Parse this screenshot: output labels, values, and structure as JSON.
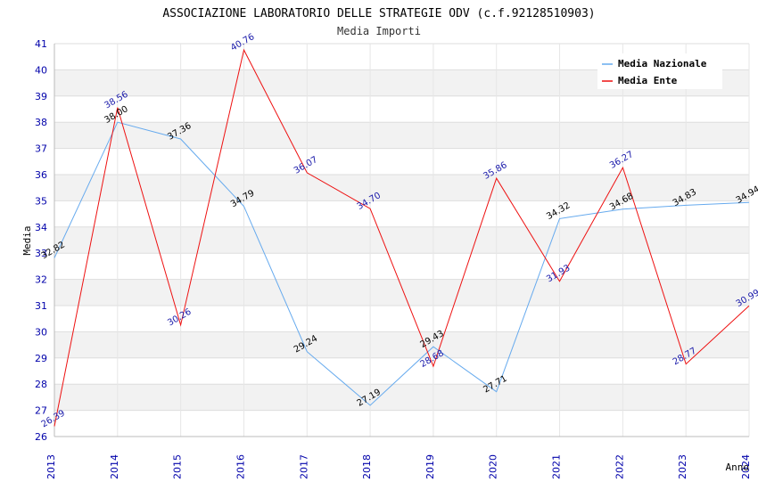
{
  "chart_data": {
    "type": "line",
    "title": "ASSOCIAZIONE LABORATORIO DELLE STRATEGIE ODV (c.f.92128510903)",
    "subtitle": "Media Importi",
    "xlabel": "Anno",
    "ylabel": "Media",
    "ylim": [
      26,
      41
    ],
    "yticks": [
      "26",
      "27",
      "28",
      "29",
      "30",
      "31",
      "32",
      "33",
      "34",
      "35",
      "36",
      "37",
      "38",
      "39",
      "40",
      "41"
    ],
    "x": [
      "2013",
      "2014",
      "2015",
      "2016",
      "2017",
      "2018",
      "2019",
      "2020",
      "2021",
      "2022",
      "2023",
      "2024"
    ],
    "grid": true,
    "legend_position": "top-right",
    "series": [
      {
        "name": "Media Nazionale",
        "color": "#66aaee",
        "label_color": "#000000",
        "values": [
          32.82,
          38.0,
          37.36,
          34.79,
          29.24,
          27.19,
          29.43,
          27.71,
          34.32,
          34.68,
          34.83,
          34.94
        ],
        "labels": [
          "32.82",
          "38.00",
          "37.36",
          "34.79",
          "29.24",
          "27.19",
          "29.43",
          "27.71",
          "34.32",
          "34.68",
          "34.83",
          "34.94"
        ]
      },
      {
        "name": "Media Ente",
        "color": "#ee1111",
        "label_color": "#1a1aaa",
        "values": [
          26.39,
          38.56,
          30.26,
          40.76,
          36.07,
          34.7,
          28.68,
          35.86,
          31.93,
          36.27,
          28.77,
          30.99
        ],
        "labels": [
          "26.39",
          "38.56",
          "30.26",
          "40.76",
          "36.07",
          "34.70",
          "28.68",
          "35.86",
          "31.93",
          "36.27",
          "28.77",
          "30.99"
        ]
      }
    ]
  }
}
